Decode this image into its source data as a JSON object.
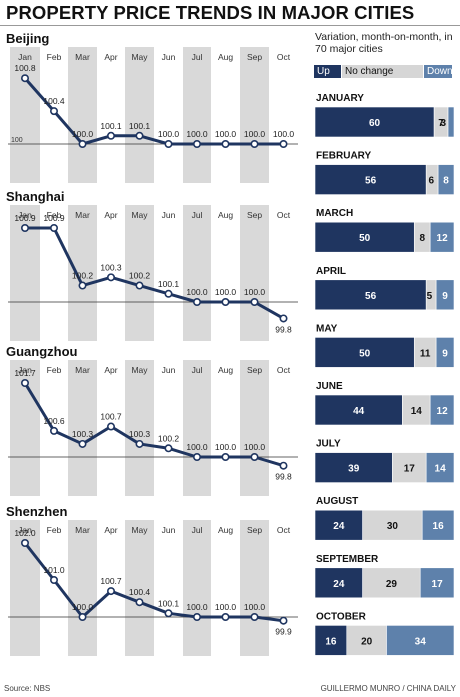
{
  "header": {
    "title": "PROPERTY PRICE TRENDS IN MAJOR CITIES",
    "source": "Source: NBS",
    "credit": "GUILLERMO MUNRO / CHINA DAILY"
  },
  "panel": {
    "subtitle": "Variation, month-on-month, in 70 major cities"
  },
  "colors": {
    "up": "#1f3560",
    "no_change": "#d6d6d6",
    "down": "#5e81ab",
    "shaded_column": "#d9d9d9",
    "line": "#1f3560"
  },
  "chart_data": [
    {
      "type": "line",
      "title": "Beijing",
      "categories": [
        "Jan",
        "Feb",
        "Mar",
        "Apr",
        "May",
        "Jun",
        "Jul",
        "Aug",
        "Sep",
        "Oct"
      ],
      "values": [
        100.8,
        100.4,
        100.0,
        100.1,
        100.1,
        100.0,
        100.0,
        100.0,
        100.0,
        100.0
      ],
      "labels": [
        "100.8",
        "100.4",
        "100.0",
        "100.1",
        "100.1",
        "100.0",
        "100.0",
        "100.0",
        "100.0",
        "100.0"
      ],
      "baseline": 100,
      "baseline_label": "100",
      "shaded_months": [
        "Jan",
        "Mar",
        "May",
        "Jul",
        "Sep"
      ]
    },
    {
      "type": "line",
      "title": "Shanghai",
      "categories": [
        "Jan",
        "Feb",
        "Mar",
        "Apr",
        "May",
        "Jun",
        "Jul",
        "Aug",
        "Sep",
        "Oct"
      ],
      "values": [
        100.9,
        100.9,
        100.2,
        100.3,
        100.2,
        100.1,
        100.0,
        100.0,
        100.0,
        99.8
      ],
      "labels": [
        "100.9",
        "100.9",
        "100.2",
        "100.3",
        "100.2",
        "100.1",
        "100.0",
        "100.0",
        "100.0",
        "99.8"
      ],
      "baseline": 100,
      "shaded_months": [
        "Jan",
        "Mar",
        "May",
        "Jul",
        "Sep"
      ]
    },
    {
      "type": "line",
      "title": "Guangzhou",
      "categories": [
        "Jan",
        "Feb",
        "Mar",
        "Apr",
        "May",
        "Jun",
        "Jul",
        "Aug",
        "Sep",
        "Oct"
      ],
      "values": [
        101.7,
        100.6,
        100.3,
        100.7,
        100.3,
        100.2,
        100.0,
        100.0,
        100.0,
        99.8
      ],
      "labels": [
        "101.7",
        "100.6",
        "100.3",
        "100.7",
        "100.3",
        "100.2",
        "100.0",
        "100.0",
        "100.0",
        "99.8"
      ],
      "baseline": 100,
      "shaded_months": [
        "Jan",
        "Mar",
        "May",
        "Jul",
        "Sep"
      ]
    },
    {
      "type": "line",
      "title": "Shenzhen",
      "categories": [
        "Jan",
        "Feb",
        "Mar",
        "Apr",
        "May",
        "Jun",
        "Jul",
        "Aug",
        "Sep",
        "Oct"
      ],
      "values": [
        102.0,
        101.0,
        100.0,
        100.7,
        100.4,
        100.1,
        100.0,
        100.0,
        100.0,
        99.9
      ],
      "labels": [
        "102.0",
        "101.0",
        "100.0",
        "100.7",
        "100.4",
        "100.1",
        "100.0",
        "100.0",
        "100.0",
        "99.9"
      ],
      "baseline": 100,
      "shaded_months": [
        "Jan",
        "Mar",
        "May",
        "Jul",
        "Sep"
      ]
    },
    {
      "type": "bar",
      "stacked": true,
      "orientation": "horizontal",
      "categories": [
        "JANUARY",
        "FEBRUARY",
        "MARCH",
        "APRIL",
        "MAY",
        "JUNE",
        "JULY",
        "AUGUST",
        "SEPTEMBER",
        "OCTOBER"
      ],
      "series": [
        {
          "name": "Up",
          "values": [
            60,
            56,
            50,
            56,
            50,
            44,
            39,
            24,
            24,
            16
          ]
        },
        {
          "name": "No change",
          "values": [
            7,
            6,
            8,
            5,
            11,
            14,
            17,
            30,
            29,
            20
          ]
        },
        {
          "name": "Down",
          "values": [
            3,
            8,
            12,
            9,
            9,
            12,
            14,
            16,
            17,
            34
          ]
        }
      ],
      "total": 70
    }
  ]
}
